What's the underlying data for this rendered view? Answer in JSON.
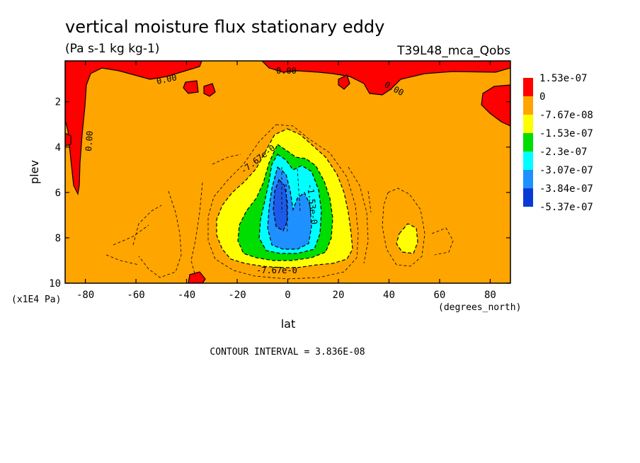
{
  "chart_data": {
    "type": "heatmap",
    "title": "vertical moisture flux stationary eddy",
    "units": "(Pa s-1 kg kg-1)",
    "run_label": "T39L48_mca_Qobs",
    "xlabel": "lat",
    "xunits": "(degrees_north)",
    "ylabel": "plev",
    "yunits": "(x1E4 Pa)",
    "xlim": [
      -88,
      88
    ],
    "ylim": [
      10,
      0.2
    ],
    "xticks": [
      -80,
      -60,
      -40,
      -20,
      0,
      20,
      40,
      60,
      80
    ],
    "yticks": [
      2,
      4,
      6,
      8,
      10
    ],
    "contour_interval": "CONTOUR INTERVAL = 3.836E-08",
    "contour_labels": [
      "0.00",
      "0.00",
      "0.00",
      "0.00",
      "-7.67e-0",
      "-1.53e-0",
      "-7.67e-0"
    ],
    "legend": {
      "levels": [
        "1.53e-07",
        "0",
        "-7.67e-08",
        "-1.53e-07",
        "-2.3e-07",
        "-3.07e-07",
        "-3.84e-07",
        "-5.37e-07"
      ],
      "colors": [
        "#ff0000",
        "#ffa500",
        "#ffff00",
        "#00dd00",
        "#00ffff",
        "#1e90ff",
        "#1c5ae8",
        "#0a3ad6"
      ]
    },
    "field_colors": {
      "positive": "#ff0000",
      "background": "#ffa500",
      "level1": "#ffff00",
      "level2": "#00dd00",
      "level3": "#00ffff",
      "level4": "#1e90ff",
      "level5": "#1c5ae8"
    }
  }
}
